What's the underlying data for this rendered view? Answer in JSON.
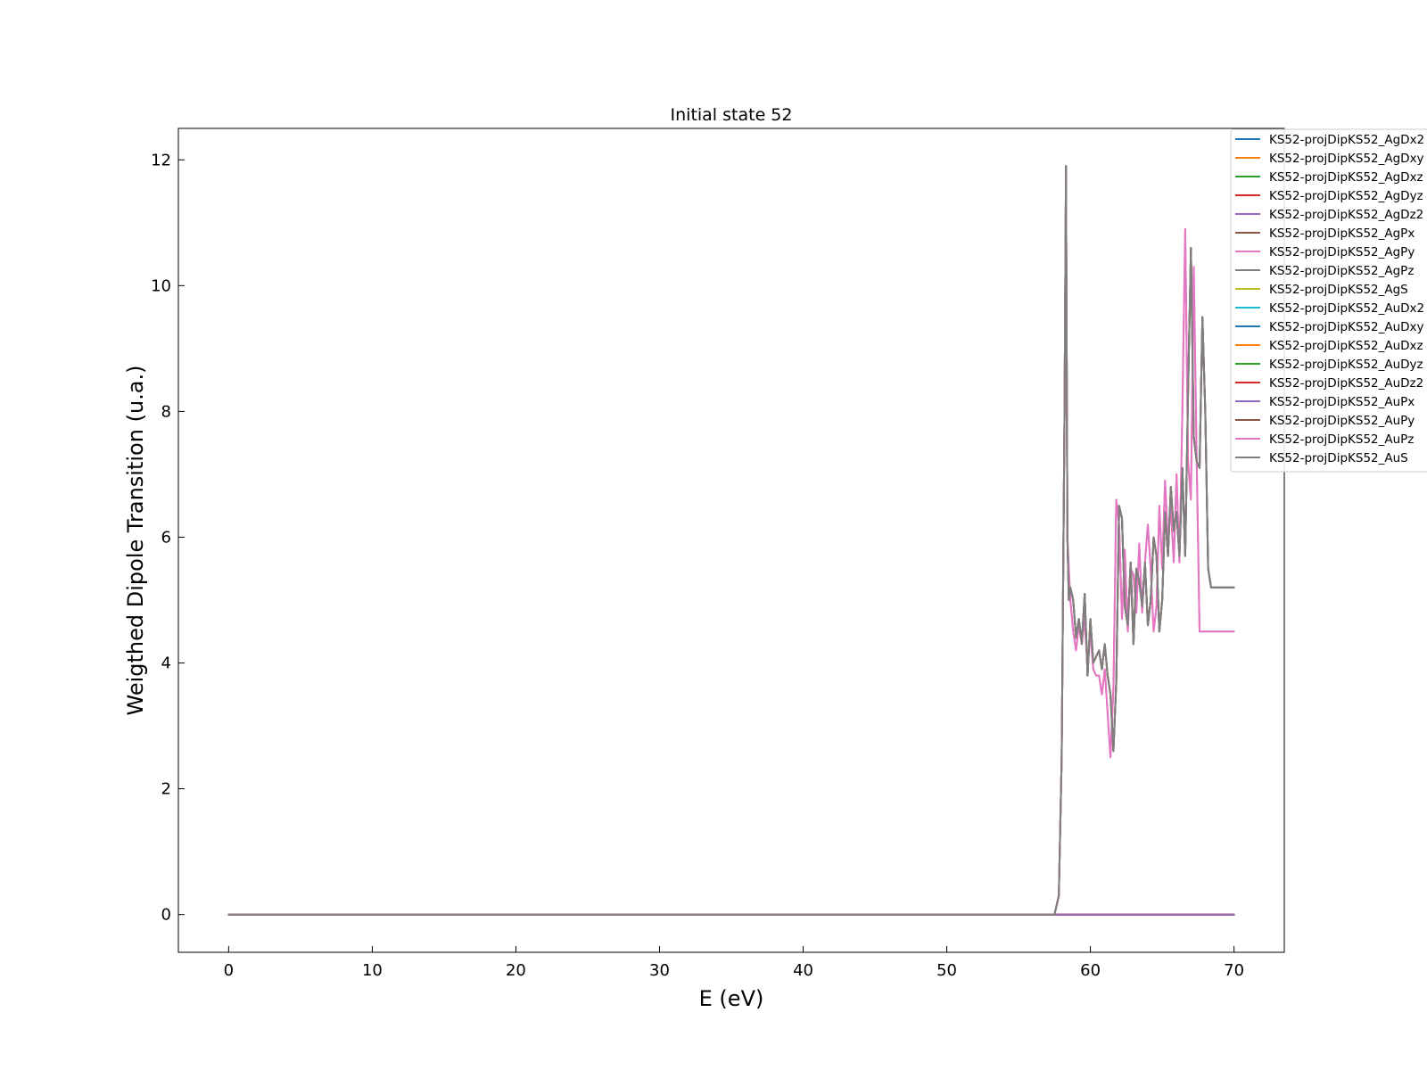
{
  "chart_data": {
    "type": "line",
    "title": "Initial state 52",
    "xlabel": "E (eV)",
    "ylabel": "Weigthed Dipole Transition (u.a.)",
    "xlim": [
      -3.5,
      73.5
    ],
    "ylim": [
      -0.6,
      12.5
    ],
    "xticks": [
      0,
      10,
      20,
      30,
      40,
      50,
      60,
      70
    ],
    "yticks": [
      0,
      2,
      4,
      6,
      8,
      10,
      12
    ],
    "grid": false,
    "legend_position": "top-right",
    "series": [
      {
        "name": "KS52-projDipKS52_AgDx2",
        "color": "#1f77b4",
        "profile": "zero"
      },
      {
        "name": "KS52-projDipKS52_AgDxy",
        "color": "#ff7f0e",
        "profile": "zero"
      },
      {
        "name": "KS52-projDipKS52_AgDxz",
        "color": "#2ca02c",
        "profile": "zero"
      },
      {
        "name": "KS52-projDipKS52_AgDyz",
        "color": "#d62728",
        "profile": "zero"
      },
      {
        "name": "KS52-projDipKS52_AgDz2",
        "color": "#9467bd",
        "profile": "zero"
      },
      {
        "name": "KS52-projDipKS52_AgPx",
        "color": "#8c564b",
        "profile": "main"
      },
      {
        "name": "KS52-projDipKS52_AgPy",
        "color": "#e377c2",
        "profile": "pink"
      },
      {
        "name": "KS52-projDipKS52_AgPz",
        "color": "#7f7f7f",
        "profile": "main"
      },
      {
        "name": "KS52-projDipKS52_AgS",
        "color": "#bcbd22",
        "profile": "zero"
      },
      {
        "name": "KS52-projDipKS52_AuDx2",
        "color": "#17becf",
        "profile": "zero"
      },
      {
        "name": "KS52-projDipKS52_AuDxy",
        "color": "#1f77b4",
        "profile": "zero"
      },
      {
        "name": "KS52-projDipKS52_AuDxz",
        "color": "#ff7f0e",
        "profile": "zero"
      },
      {
        "name": "KS52-projDipKS52_AuDyz",
        "color": "#2ca02c",
        "profile": "zero"
      },
      {
        "name": "KS52-projDipKS52_AuDz2",
        "color": "#d62728",
        "profile": "zero"
      },
      {
        "name": "KS52-projDipKS52_AuPx",
        "color": "#9467bd",
        "profile": "zero"
      },
      {
        "name": "KS52-projDipKS52_AuPy",
        "color": "#8c564b",
        "profile": "main"
      },
      {
        "name": "KS52-projDipKS52_AuPz",
        "color": "#e377c2",
        "profile": "pink"
      },
      {
        "name": "KS52-projDipKS52_AuS",
        "color": "#7f7f7f",
        "profile": "main"
      }
    ],
    "profiles": {
      "zero": {
        "x": [
          0,
          70
        ],
        "y": [
          0,
          0
        ]
      },
      "main": {
        "x": [
          0,
          57.5,
          57.8,
          58.0,
          58.2,
          58.3,
          58.4,
          58.5,
          58.6,
          58.8,
          59.0,
          59.2,
          59.4,
          59.6,
          59.8,
          60.0,
          60.2,
          60.4,
          60.6,
          60.8,
          61.0,
          61.2,
          61.4,
          61.6,
          61.8,
          62.0,
          62.2,
          62.4,
          62.6,
          62.8,
          63.0,
          63.2,
          63.4,
          63.6,
          63.8,
          64.0,
          64.2,
          64.4,
          64.6,
          64.8,
          65.0,
          65.2,
          65.4,
          65.6,
          65.8,
          66.0,
          66.2,
          66.4,
          66.6,
          66.8,
          67.0,
          67.2,
          67.4,
          67.6,
          67.8,
          68.0,
          68.2,
          68.4,
          68.6,
          68.8,
          69.0,
          69.2,
          69.4,
          69.6,
          69.8,
          70.0
        ],
        "y": [
          0,
          0,
          0.3,
          2.5,
          8.0,
          11.9,
          6.0,
          5.0,
          5.2,
          5.0,
          4.4,
          4.7,
          4.3,
          5.1,
          3.8,
          4.7,
          4.0,
          4.1,
          4.2,
          3.9,
          4.3,
          3.8,
          3.5,
          2.6,
          3.7,
          6.5,
          6.3,
          4.9,
          4.6,
          5.6,
          4.3,
          5.5,
          5.3,
          4.9,
          5.6,
          4.6,
          5.0,
          6.0,
          5.7,
          4.5,
          5.0,
          6.4,
          5.7,
          6.8,
          6.1,
          6.4,
          5.7,
          7.1,
          5.7,
          8.3,
          10.6,
          7.6,
          7.2,
          7.1,
          9.5,
          8.0,
          5.5,
          5.2,
          5.2,
          5.2,
          5.2,
          5.2,
          5.2,
          5.2,
          5.2,
          5.2
        ]
      },
      "pink": {
        "x": [
          0,
          57.5,
          57.8,
          58.0,
          58.2,
          58.3,
          58.4,
          58.5,
          58.6,
          58.8,
          59.0,
          59.2,
          59.4,
          59.6,
          59.8,
          60.0,
          60.2,
          60.4,
          60.6,
          60.8,
          61.0,
          61.2,
          61.4,
          61.6,
          61.8,
          62.0,
          62.2,
          62.4,
          62.6,
          62.8,
          63.0,
          63.2,
          63.4,
          63.6,
          63.8,
          64.0,
          64.2,
          64.4,
          64.6,
          64.8,
          65.0,
          65.2,
          65.4,
          65.6,
          65.8,
          66.0,
          66.2,
          66.4,
          66.6,
          66.8,
          67.0,
          67.2,
          67.4,
          67.6,
          67.8,
          68.0,
          68.2,
          68.4,
          68.6,
          68.8,
          69.0,
          69.2,
          69.4,
          69.6,
          69.8,
          70.0
        ],
        "y": [
          0,
          0,
          0.3,
          2.5,
          8.0,
          11.8,
          6.0,
          5.5,
          5.0,
          4.5,
          4.2,
          4.6,
          4.3,
          4.7,
          3.9,
          4.5,
          3.9,
          3.8,
          3.8,
          3.5,
          3.9,
          3.2,
          2.5,
          3.6,
          6.6,
          6.2,
          4.7,
          5.8,
          4.5,
          5.5,
          5.4,
          4.8,
          5.9,
          4.8,
          5.6,
          6.2,
          5.5,
          4.5,
          4.9,
          6.5,
          5.5,
          6.9,
          5.9,
          6.5,
          5.6,
          7.0,
          5.6,
          8.0,
          10.9,
          7.2,
          6.6,
          10.3,
          7.2,
          4.5,
          4.5,
          4.5,
          4.5,
          4.5,
          4.5,
          4.5,
          4.5,
          4.5,
          4.5,
          4.5,
          4.5,
          4.5
        ]
      }
    }
  }
}
